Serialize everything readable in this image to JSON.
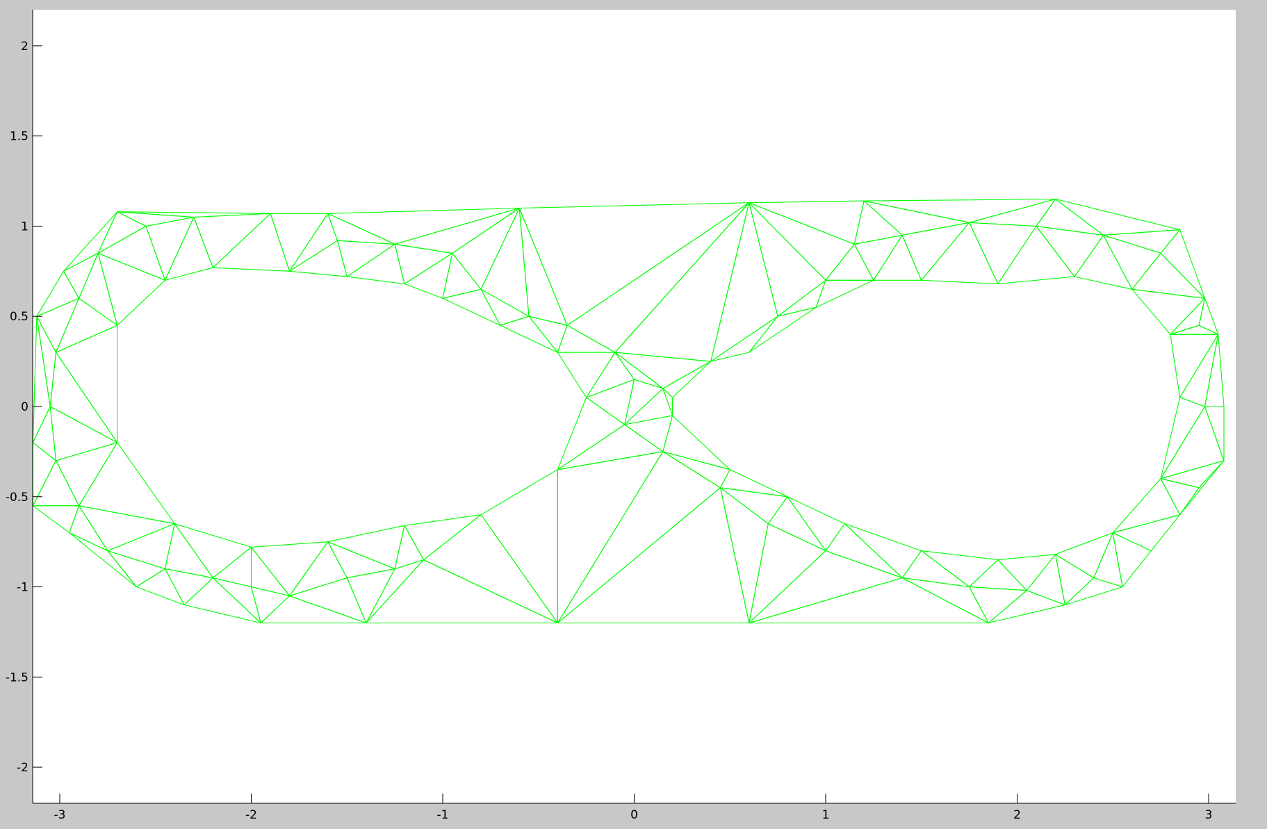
{
  "chart_data": {
    "type": "triangle-mesh",
    "xlim": [
      -3.14159,
      3.14159
    ],
    "ylim": [
      -2.2,
      2.2
    ],
    "grid": false,
    "line_color": "#00ff00",
    "axes_background": "#ffffff",
    "figure_background": "#c8c8c8",
    "x_ticks": [
      {
        "value": -3,
        "label": "-3"
      },
      {
        "value": -2,
        "label": "-2"
      },
      {
        "value": -1,
        "label": "-1"
      },
      {
        "value": 0,
        "label": "0"
      },
      {
        "value": 1,
        "label": "1"
      },
      {
        "value": 2,
        "label": "2"
      },
      {
        "value": 3,
        "label": "3"
      }
    ],
    "y_ticks": [
      {
        "value": 2,
        "label": "2"
      },
      {
        "value": 1.5,
        "label": "1.5"
      },
      {
        "value": 1,
        "label": "1"
      },
      {
        "value": 0.5,
        "label": "0.5"
      },
      {
        "value": 0,
        "label": "0"
      },
      {
        "value": -0.5,
        "label": "-0.5"
      },
      {
        "value": -1,
        "label": "-1"
      },
      {
        "value": -1.5,
        "label": "-1.5"
      },
      {
        "value": -2,
        "label": "-2"
      }
    ],
    "outer_boundary": [
      [
        -2.7,
        1.08
      ],
      [
        -1.9,
        1.07
      ],
      [
        -1.6,
        1.07
      ],
      [
        -0.6,
        1.1
      ],
      [
        0.6,
        1.13
      ],
      [
        1.2,
        1.14
      ],
      [
        2.2,
        1.15
      ],
      [
        2.85,
        0.98
      ],
      [
        2.98,
        0.6
      ],
      [
        3.05,
        0.4
      ],
      [
        3.08,
        0.0
      ],
      [
        3.08,
        -0.3
      ],
      [
        2.85,
        -0.6
      ],
      [
        2.55,
        -1.0
      ],
      [
        2.25,
        -1.1
      ],
      [
        1.85,
        -1.2
      ],
      [
        0.6,
        -1.2
      ],
      [
        -0.4,
        -1.2
      ],
      [
        -1.4,
        -1.2
      ],
      [
        -1.95,
        -1.2
      ],
      [
        -2.35,
        -1.1
      ],
      [
        -2.6,
        -1.0
      ],
      [
        -2.95,
        -0.7
      ],
      [
        -3.14,
        -0.55
      ],
      [
        -3.14,
        -0.2
      ],
      [
        -3.12,
        0.5
      ],
      [
        -2.98,
        0.75
      ]
    ],
    "left_hole": [
      [
        -2.2,
        0.77
      ],
      [
        -1.8,
        0.75
      ],
      [
        -1.5,
        0.72
      ],
      [
        -1.2,
        0.68
      ],
      [
        -1.0,
        0.6
      ],
      [
        -0.7,
        0.45
      ],
      [
        -0.4,
        0.3
      ],
      [
        -0.25,
        0.05
      ],
      [
        -0.4,
        -0.35
      ],
      [
        -0.8,
        -0.6
      ],
      [
        -1.2,
        -0.66
      ],
      [
        -1.6,
        -0.75
      ],
      [
        -2.0,
        -0.78
      ],
      [
        -2.4,
        -0.65
      ],
      [
        -2.7,
        -0.2
      ],
      [
        -2.7,
        0.45
      ],
      [
        -2.45,
        0.7
      ]
    ],
    "right_hole": [
      [
        1.25,
        0.7
      ],
      [
        1.5,
        0.7
      ],
      [
        1.9,
        0.68
      ],
      [
        2.3,
        0.72
      ],
      [
        2.6,
        0.65
      ],
      [
        2.8,
        0.4
      ],
      [
        2.85,
        0.05
      ],
      [
        2.75,
        -0.4
      ],
      [
        2.5,
        -0.7
      ],
      [
        2.2,
        -0.82
      ],
      [
        1.9,
        -0.85
      ],
      [
        1.5,
        -0.8
      ],
      [
        1.1,
        -0.65
      ],
      [
        0.8,
        -0.5
      ],
      [
        0.5,
        -0.35
      ],
      [
        0.2,
        -0.05
      ],
      [
        0.2,
        0.05
      ],
      [
        0.6,
        0.3
      ],
      [
        0.95,
        0.55
      ]
    ],
    "band_nodes": [
      [
        -2.3,
        1.05
      ],
      [
        -2.55,
        1.0
      ],
      [
        -2.8,
        0.85
      ],
      [
        -2.9,
        0.6
      ],
      [
        -3.02,
        0.3
      ],
      [
        -3.05,
        0.0
      ],
      [
        -3.02,
        -0.3
      ],
      [
        -2.9,
        -0.55
      ],
      [
        -2.75,
        -0.8
      ],
      [
        -2.45,
        -0.9
      ],
      [
        -2.2,
        -0.95
      ],
      [
        -2.0,
        -1.0
      ],
      [
        -1.8,
        -1.05
      ],
      [
        -1.5,
        -0.95
      ],
      [
        -1.25,
        -0.9
      ],
      [
        -1.1,
        -0.85
      ],
      [
        -1.55,
        0.92
      ],
      [
        -1.25,
        0.9
      ],
      [
        -0.95,
        0.85
      ],
      [
        -0.8,
        0.65
      ],
      [
        -0.55,
        0.5
      ],
      [
        -0.35,
        0.45
      ],
      [
        -0.1,
        0.3
      ],
      [
        0.0,
        0.15
      ],
      [
        -0.05,
        -0.1
      ],
      [
        0.15,
        -0.25
      ],
      [
        0.45,
        -0.45
      ],
      [
        0.7,
        -0.65
      ],
      [
        1.0,
        -0.8
      ],
      [
        1.4,
        -0.95
      ],
      [
        1.75,
        -1.0
      ],
      [
        2.05,
        -1.02
      ],
      [
        2.4,
        -0.95
      ],
      [
        2.7,
        -0.8
      ],
      [
        2.95,
        -0.45
      ],
      [
        2.98,
        0.0
      ],
      [
        2.95,
        0.45
      ],
      [
        2.75,
        0.85
      ],
      [
        2.45,
        0.95
      ],
      [
        2.1,
        1.0
      ],
      [
        1.75,
        1.02
      ],
      [
        1.4,
        0.95
      ],
      [
        1.15,
        0.9
      ],
      [
        1.0,
        0.7
      ],
      [
        0.75,
        0.5
      ],
      [
        0.4,
        0.25
      ],
      [
        0.15,
        0.1
      ]
    ]
  }
}
